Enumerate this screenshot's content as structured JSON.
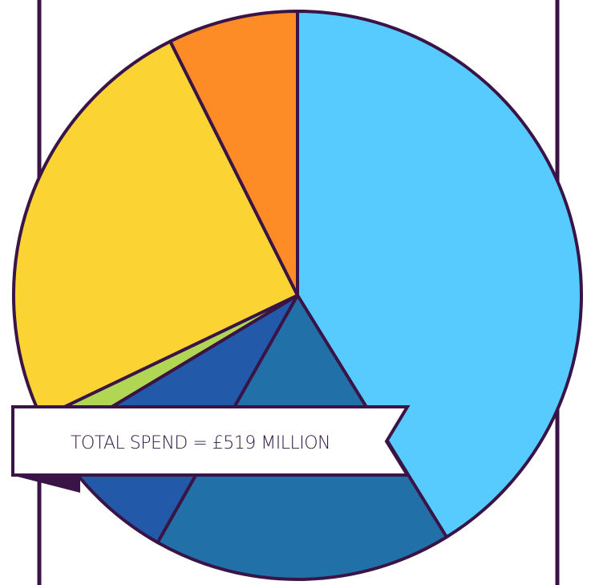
{
  "chart_data": {
    "type": "pie",
    "title": "",
    "start_angle_deg": 0,
    "direction": "clockwise",
    "slices": [
      {
        "value": 41.2,
        "color": "#57cbfe"
      },
      {
        "value": 17.0,
        "color": "#2270a8"
      },
      {
        "value": 8.2,
        "color": "#2359a9"
      },
      {
        "value": 1.5,
        "color": "#b1d654"
      },
      {
        "value": 24.7,
        "color": "#fbd333"
      },
      {
        "value": 7.4,
        "color": "#fd8b26"
      }
    ],
    "annotation": "TOTAL SPEND = £519 MILLION"
  },
  "colors": {
    "outline": "#3a1446",
    "banner_fill": "#ffffff",
    "banner_shadow": "#3a1446"
  }
}
